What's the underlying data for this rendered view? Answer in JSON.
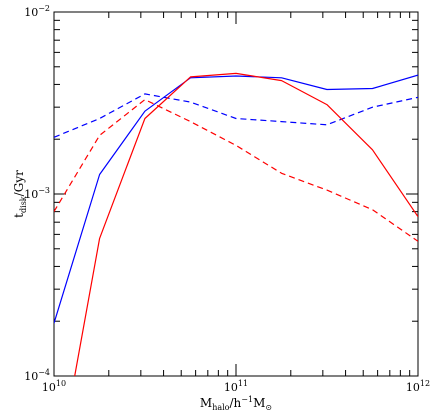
{
  "chart_data": {
    "type": "line",
    "xscale": "log",
    "yscale": "log",
    "xlim": [
      10000000000.0,
      1000000000000.0
    ],
    "ylim": [
      0.0001,
      0.01
    ],
    "grid": false,
    "xlabel": {
      "main": "M",
      "sub": "halo",
      "rest": "/h",
      "sup": "−1",
      "rest2": "M",
      "sub2": "⊙"
    },
    "ylabel": {
      "main": "t",
      "sub": "disk",
      "rest": "/Gyr"
    },
    "x_ticks": [
      {
        "value": 10000000000.0,
        "mant": "10",
        "exp": "10"
      },
      {
        "value": 100000000000.0,
        "mant": "10",
        "exp": "11"
      },
      {
        "value": 1000000000000.0,
        "mant": "10",
        "exp": "12"
      }
    ],
    "y_ticks": [
      {
        "value": 0.0001,
        "mant": "10",
        "exp": "−4"
      },
      {
        "value": 0.001,
        "mant": "10",
        "exp": "−3"
      },
      {
        "value": 0.01,
        "mant": "10",
        "exp": "−2"
      }
    ],
    "series": [
      {
        "color": "#0000ff",
        "dash": "solid",
        "x": [
          10000000000.0,
          17800000000.0,
          31600000000.0,
          56200000000.0,
          100000000000.0,
          178000000000.0,
          316000000000.0,
          562000000000.0,
          1000000000000.0
        ],
        "y": [
          0.000195,
          0.00128,
          0.00285,
          0.00435,
          0.00445,
          0.00435,
          0.00375,
          0.0038,
          0.0045
        ]
      },
      {
        "color": "#0000ff",
        "dash": "dashed",
        "x": [
          10000000000.0,
          17800000000.0,
          31600000000.0,
          56200000000.0,
          100000000000.0,
          178000000000.0,
          316000000000.0,
          562000000000.0,
          1000000000000.0
        ],
        "y": [
          0.00205,
          0.0026,
          0.00355,
          0.0032,
          0.0026,
          0.0025,
          0.0024,
          0.003,
          0.0034
        ]
      },
      {
        "color": "#ff0000",
        "dash": "solid",
        "x": [
          13000000000.0,
          17800000000.0,
          31600000000.0,
          56200000000.0,
          100000000000.0,
          178000000000.0,
          316000000000.0,
          562000000000.0,
          1000000000000.0
        ],
        "y": [
          0.0001,
          0.00057,
          0.0026,
          0.0044,
          0.0046,
          0.0042,
          0.0031,
          0.00175,
          0.00075
        ]
      },
      {
        "color": "#ff0000",
        "dash": "dashed",
        "x": [
          10000000000.0,
          17800000000.0,
          31600000000.0,
          56200000000.0,
          100000000000.0,
          178000000000.0,
          316000000000.0,
          562000000000.0,
          1000000000000.0
        ],
        "y": [
          0.0008,
          0.0021,
          0.0033,
          0.0025,
          0.00185,
          0.0013,
          0.00105,
          0.00082,
          0.00055
        ]
      }
    ]
  }
}
